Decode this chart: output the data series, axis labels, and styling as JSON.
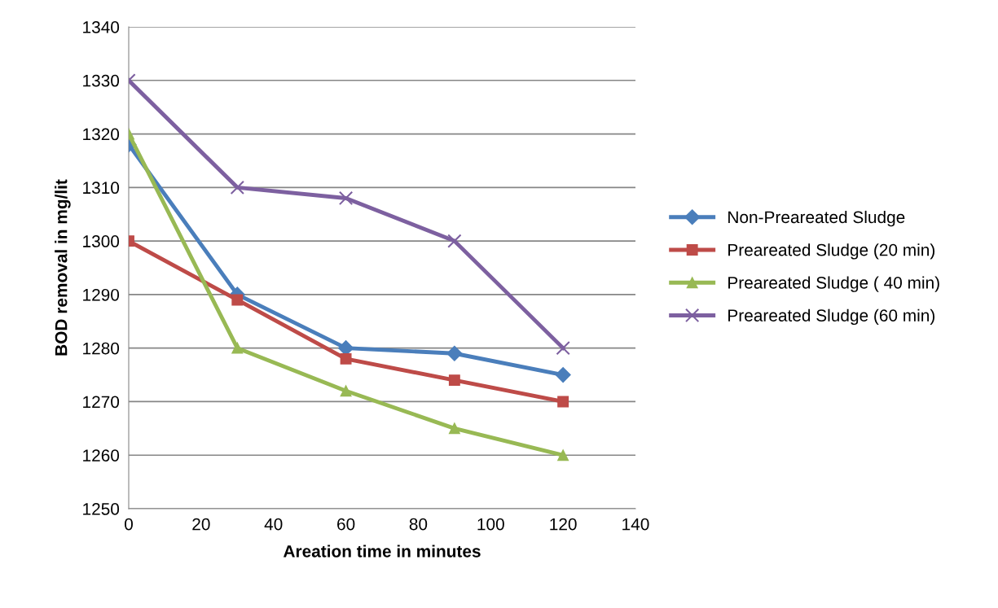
{
  "chart_data": {
    "type": "line",
    "xlabel": "Areation time in minutes",
    "ylabel": "BOD removal in mg/lit",
    "x": [
      0,
      30,
      60,
      90,
      120
    ],
    "series": [
      {
        "name": "Non-Preareated Sludge",
        "color": "#4a7ebb",
        "marker": "diamond",
        "values": [
          1318,
          1290,
          1280,
          1279,
          1275
        ]
      },
      {
        "name": "Preareated Sludge (20 min)",
        "color": "#be4b48",
        "marker": "square",
        "values": [
          1300,
          1289,
          1278,
          1274,
          1270
        ]
      },
      {
        "name": "Preareated Sludge ( 40 min)",
        "color": "#98b954",
        "marker": "triangle",
        "values": [
          1320,
          1280,
          1272,
          1265,
          1260
        ]
      },
      {
        "name": "Preareated Sludge (60 min)",
        "color": "#7d60a0",
        "marker": "cross",
        "values": [
          1330,
          1310,
          1308,
          1300,
          1280
        ]
      }
    ],
    "xlim": [
      0,
      140
    ],
    "xticks": [
      0,
      20,
      40,
      60,
      80,
      100,
      120,
      140
    ],
    "ylim": [
      1250,
      1340
    ],
    "yticks": [
      1250,
      1260,
      1270,
      1280,
      1290,
      1300,
      1310,
      1320,
      1330,
      1340
    ],
    "grid": "y",
    "legend": "right",
    "line_style": "solid"
  }
}
